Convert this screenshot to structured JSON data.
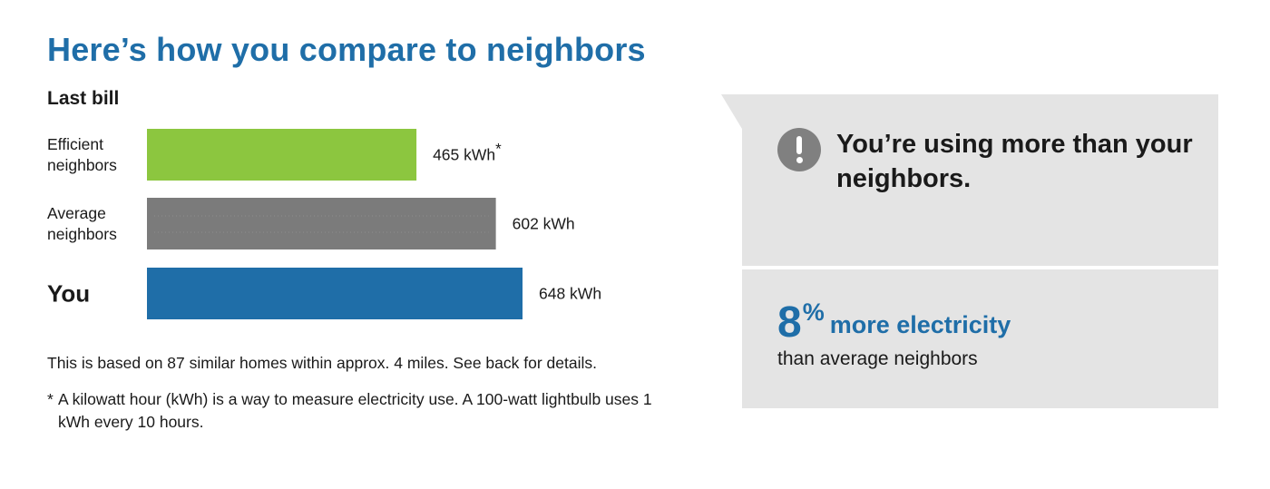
{
  "title": "Here’s how you compare to neighbors",
  "subtitle": "Last bill",
  "chart_data": {
    "type": "bar",
    "orientation": "horizontal",
    "title": "Last bill",
    "categories": [
      "Efficient neighbors",
      "Average neighbors",
      "You"
    ],
    "values": [
      465,
      602,
      648
    ],
    "unit": "kWh",
    "value_labels": [
      "465 kWh",
      "602 kWh",
      "648 kWh"
    ],
    "value_label_suffixes": [
      "*",
      "",
      ""
    ],
    "colors": [
      "#8cc63f",
      "#7b7b7b",
      "#1f6ea8"
    ],
    "grid": false
  },
  "note": "This is based on 87 similar homes within approx. 4 miles. See back for details.",
  "footnote": {
    "marker": "*",
    "text": "A kilowatt hour (kWh) is a way to measure electricity use. A 100-watt lightbulb uses 1 kWh every 10 hours."
  },
  "callout": {
    "icon": "exclamation-icon",
    "message": "You’re using more than your neighbors.",
    "percent_value": "8",
    "percent_sign": "%",
    "percent_label": "more electricity",
    "comparison": "than average neighbors",
    "accent_color": "#1f6ea8",
    "panel_color": "#e4e4e4"
  }
}
